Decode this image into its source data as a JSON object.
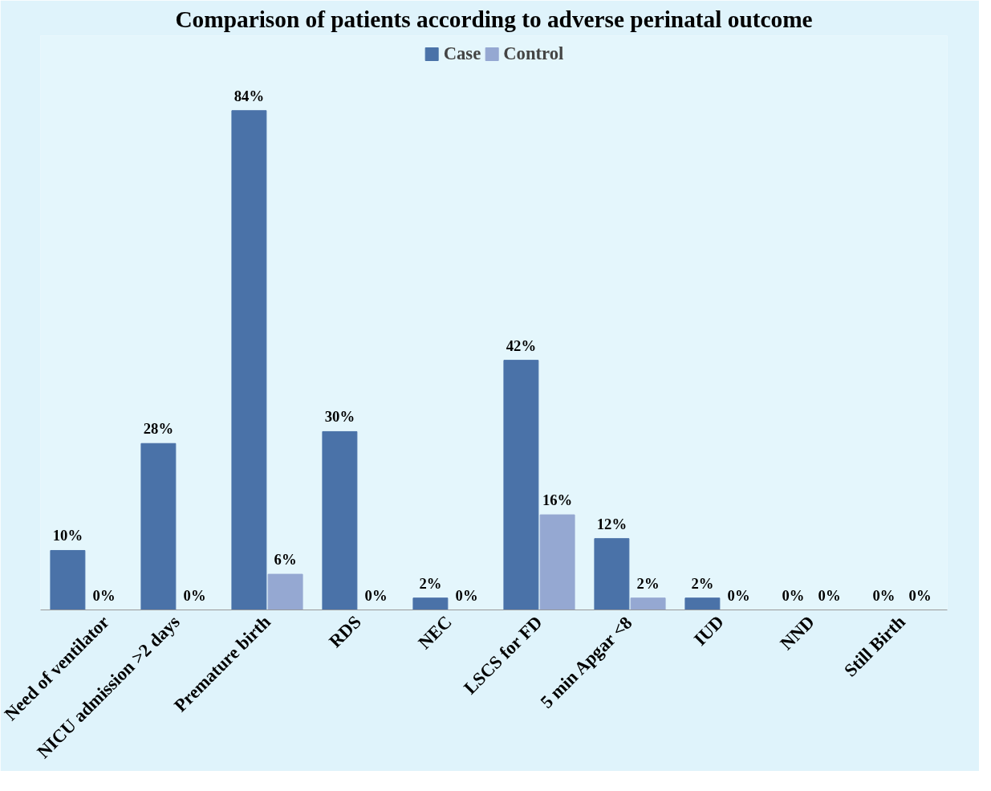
{
  "chart_data": {
    "type": "bar",
    "title": "Comparison of patients according to adverse perinatal outcome",
    "categories": [
      "Need of ventilator",
      "NICU admission >2 days",
      "Premature birth",
      "RDS",
      "NEC",
      "LSCS for FD",
      "5 min Apgar <8",
      "IUD",
      "NND",
      "Still Birth"
    ],
    "series": [
      {
        "name": "Case",
        "color": "#4a72a8",
        "values": [
          10,
          28,
          84,
          30,
          2,
          42,
          12,
          2,
          0,
          0
        ],
        "value_labels": [
          "10%",
          "28%",
          "84%",
          "30%",
          "2%",
          "42%",
          "12%",
          "2%",
          "0%",
          "0%"
        ]
      },
      {
        "name": "Control",
        "color": "#95a8d2",
        "values": [
          0,
          0,
          6,
          0,
          0,
          16,
          2,
          0,
          0,
          0
        ],
        "value_labels": [
          "0%",
          "0%",
          "6%",
          "0%",
          "0%",
          "16%",
          "2%",
          "0%",
          "0%",
          "0%"
        ]
      }
    ],
    "legend": "top",
    "grid": false,
    "tick_labels": "x"
  }
}
